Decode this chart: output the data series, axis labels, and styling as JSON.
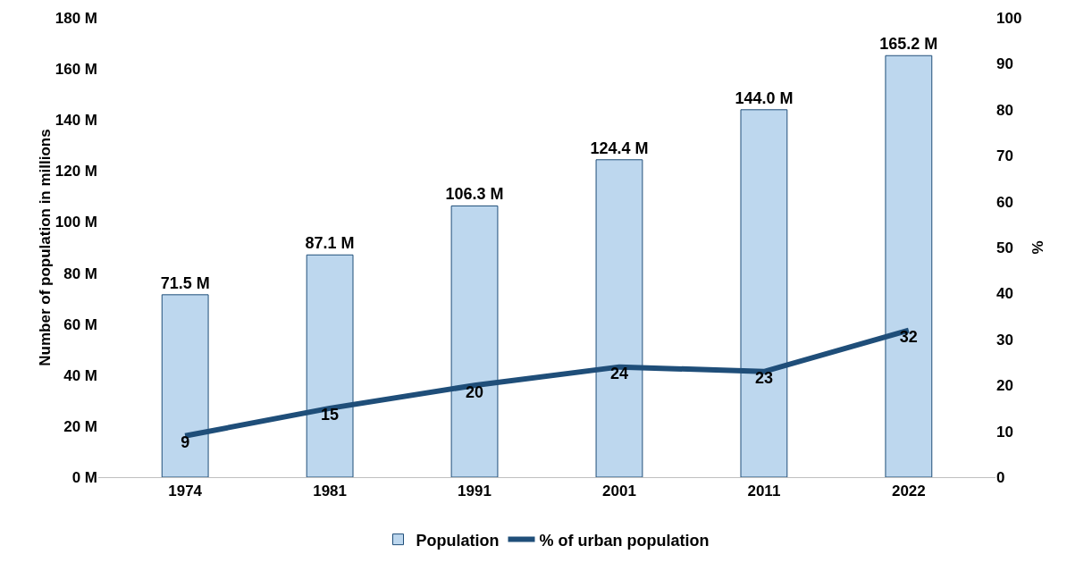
{
  "chart_data": {
    "type": "bar",
    "categories": [
      "1974",
      "1981",
      "1991",
      "2001",
      "2011",
      "2022"
    ],
    "ylabel": "Number of population in millions",
    "y2label": "%",
    "ylim": [
      0,
      180
    ],
    "yticks": [
      {
        "value": 0,
        "label": "0 M"
      },
      {
        "value": 20,
        "label": "20 M"
      },
      {
        "value": 40,
        "label": "40 M"
      },
      {
        "value": 60,
        "label": "60 M"
      },
      {
        "value": 80,
        "label": "80 M"
      },
      {
        "value": 100,
        "label": "100 M"
      },
      {
        "value": 120,
        "label": "120 M"
      },
      {
        "value": 140,
        "label": "140 M"
      },
      {
        "value": 160,
        "label": "160 M"
      },
      {
        "value": 180,
        "label": "180 M"
      }
    ],
    "y2lim": [
      0,
      100
    ],
    "y2ticks": [
      0,
      10,
      20,
      30,
      40,
      50,
      60,
      70,
      80,
      90,
      100
    ],
    "grid": false,
    "legend": "bottom",
    "series": [
      {
        "name": "Population",
        "color": "#bdd7ee",
        "values": [
          71.5,
          87.1,
          106.3,
          124.4,
          144.0,
          165.2
        ],
        "value_labels": [
          "71.5 M",
          "87.1 M",
          "106.3 M",
          "124.4 M",
          "144.0 M",
          "165.2 M"
        ]
      },
      {
        "name": "% of urban population",
        "type": "line",
        "axis": "y2",
        "color": "#1f4e79",
        "values": [
          9,
          15,
          20,
          24,
          23,
          32
        ],
        "value_labels": [
          "9",
          "15",
          "20",
          "24",
          "23",
          "32"
        ]
      }
    ]
  }
}
